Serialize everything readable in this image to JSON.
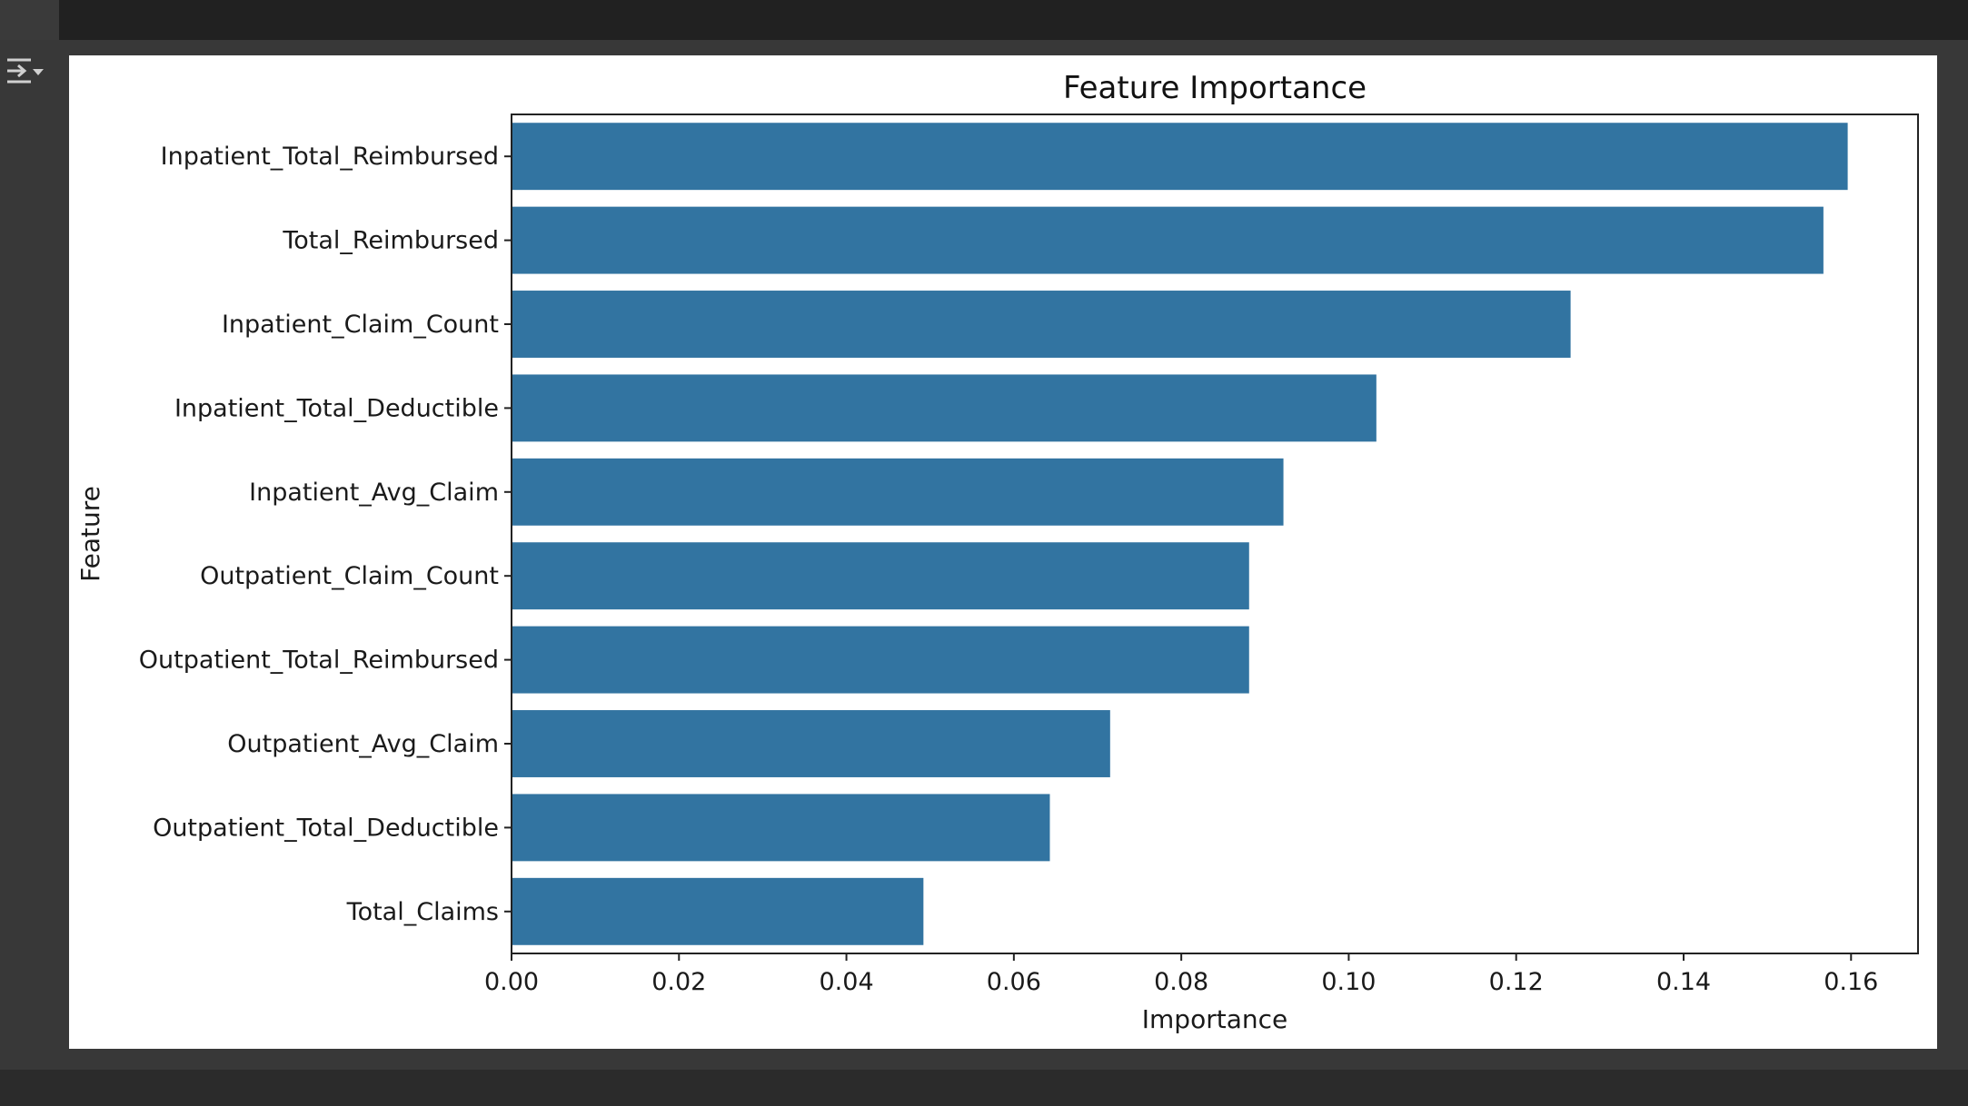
{
  "toolbar": {
    "output_toggle_icon": "output-collapse-icon"
  },
  "colors": {
    "bar": "#3274a1",
    "axes": "#222222",
    "background": "#ffffff",
    "page": "#383838"
  },
  "chart_data": {
    "type": "bar",
    "orientation": "horizontal",
    "title": "Feature Importance",
    "xlabel": "Importance",
    "ylabel": "Feature",
    "categories": [
      "Inpatient_Total_Reimbursed",
      "Total_Reimbursed",
      "Inpatient_Claim_Count",
      "Inpatient_Total_Deductible",
      "Inpatient_Avg_Claim",
      "Outpatient_Claim_Count",
      "Outpatient_Total_Reimbursed",
      "Outpatient_Avg_Claim",
      "Outpatient_Total_Deductible",
      "Total_Claims"
    ],
    "values": [
      0.1596,
      0.1567,
      0.1265,
      0.1033,
      0.0922,
      0.0881,
      0.0881,
      0.0715,
      0.0643,
      0.0492
    ],
    "xlim": [
      0,
      0.168
    ],
    "xticks": [
      0.0,
      0.02,
      0.04,
      0.06,
      0.08,
      0.1,
      0.12,
      0.14,
      0.16
    ],
    "xtick_labels": [
      "0.00",
      "0.02",
      "0.04",
      "0.06",
      "0.08",
      "0.10",
      "0.12",
      "0.14",
      "0.16"
    ],
    "grid": false,
    "legend": "none"
  }
}
